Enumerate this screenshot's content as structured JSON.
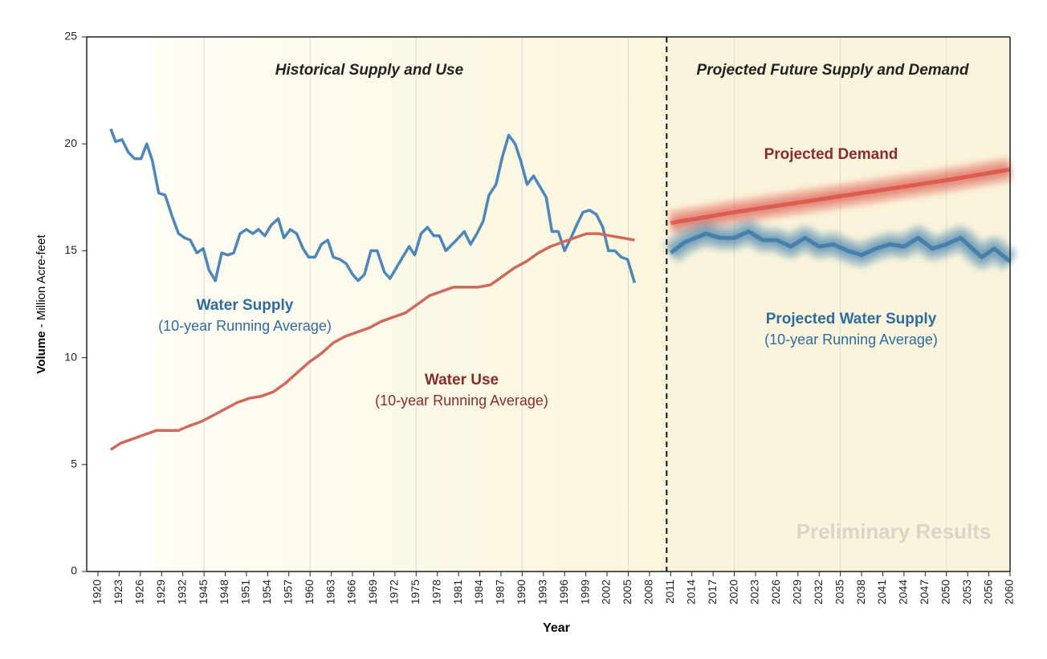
{
  "chart_data": {
    "type": "line",
    "xlabel": "Year",
    "ylabel": "Volume",
    "ylabel_units": "- Million Acre-feet",
    "ylim": [
      0,
      25
    ],
    "yticks": [
      0,
      5,
      10,
      15,
      20,
      25
    ],
    "xlim": [
      1920,
      2060
    ],
    "xticks": [
      1920,
      1923,
      1926,
      1929,
      1932,
      1945,
      1948,
      1951,
      1954,
      1957,
      1960,
      1963,
      1966,
      1969,
      1972,
      1975,
      1978,
      1981,
      1984,
      1987,
      1990,
      1993,
      1996,
      1999,
      2002,
      2005,
      2008,
      2011,
      2014,
      2017,
      2020,
      2023,
      2026,
      2029,
      2032,
      2035,
      2038,
      2041,
      2044,
      2047,
      2050,
      2053,
      2056,
      2060
    ],
    "regions": [
      {
        "title": "Historical Supply and Use"
      },
      {
        "title": "Projected Future Supply and Demand"
      }
    ],
    "watermark": "Preliminary Results",
    "series": [
      {
        "name": "Water Supply",
        "note": "(10-year Running Average)",
        "color": "#4b87ba",
        "blurred": false,
        "x": [
          1921.8,
          1922.5,
          1923.4,
          1924.3,
          1925.2,
          1926.1,
          1926.9,
          1927.7,
          1928.6,
          1929.5,
          1930.5,
          1931.4,
          1933.2,
          1936.6,
          1940.6,
          1944.5,
          1945.7,
          1946.6,
          1947.5,
          1948.4,
          1949.2,
          1950.1,
          1951.0,
          1951.9,
          1952.7,
          1953.6,
          1954.5,
          1955.5,
          1956.3,
          1957.2,
          1958.1,
          1959.0,
          1959.8,
          1960.7,
          1961.6,
          1962.5,
          1963.3,
          1964.2,
          1965.1,
          1966.0,
          1966.8,
          1967.7,
          1968.6,
          1969.5,
          1970.5,
          1971.3,
          1972.2,
          1973.1,
          1974.0,
          1974.8,
          1975.7,
          1976.6,
          1977.5,
          1978.3,
          1979.2,
          1980.1,
          1981.0,
          1981.8,
          1982.7,
          1983.6,
          1984.5,
          1985.3,
          1986.3,
          1987.2,
          1988.1,
          1989.0,
          1989.8,
          1990.7,
          1991.6,
          1992.5,
          1993.4,
          1994.2,
          1995.1,
          1996.0,
          1996.9,
          1997.7,
          1998.6,
          1999.5,
          2000.5,
          2001.4,
          2002.2,
          2003.1,
          2004.0,
          2004.9,
          2005.9
        ],
        "values": [
          20.7,
          20.1,
          20.2,
          19.6,
          19.3,
          19.3,
          20.0,
          19.2,
          17.7,
          17.6,
          16.6,
          15.8,
          15.6,
          15.5,
          14.9,
          15.1,
          14.1,
          13.6,
          14.9,
          14.8,
          14.9,
          15.8,
          16.0,
          15.8,
          16.0,
          15.7,
          16.2,
          16.5,
          15.6,
          16.0,
          15.8,
          15.1,
          14.7,
          14.7,
          15.3,
          15.5,
          14.7,
          14.6,
          14.4,
          13.9,
          13.6,
          13.9,
          15.0,
          15.0,
          14.0,
          13.7,
          14.2,
          14.7,
          15.2,
          14.8,
          15.8,
          16.1,
          15.7,
          15.7,
          15.0,
          15.3,
          15.6,
          15.9,
          15.3,
          15.8,
          16.4,
          17.6,
          18.1,
          19.4,
          20.4,
          20.0,
          19.2,
          18.1,
          18.5,
          18.0,
          17.5,
          15.9,
          15.9,
          15.0,
          15.6,
          16.2,
          16.8,
          16.9,
          16.7,
          16.1,
          15.0,
          15.0,
          14.7,
          14.6,
          13.5
        ]
      },
      {
        "name": "Water Use",
        "note": "(10-year Running Average)",
        "color": "#d0695c",
        "blurred": false,
        "x": [
          1921.8,
          1923.2,
          1924.9,
          1926.6,
          1928.3,
          1930.0,
          1931.4,
          1935.6,
          1943.0,
          1946.3,
          1948.0,
          1949.7,
          1951.4,
          1953.1,
          1954.8,
          1956.5,
          1958.2,
          1959.9,
          1961.6,
          1963.3,
          1965.0,
          1966.7,
          1968.4,
          1970.1,
          1971.8,
          1973.5,
          1975.2,
          1976.9,
          1978.6,
          1980.3,
          1982.0,
          1983.8,
          1985.5,
          1987.2,
          1988.9,
          1990.6,
          1992.3,
          1994.0,
          1995.7,
          1997.4,
          1999.1,
          2000.8,
          2002.5,
          2004.2,
          2005.9
        ],
        "values": [
          5.7,
          6.0,
          6.2,
          6.4,
          6.6,
          6.6,
          6.6,
          6.8,
          7.0,
          7.3,
          7.6,
          7.9,
          8.1,
          8.2,
          8.4,
          8.8,
          9.3,
          9.8,
          10.2,
          10.7,
          11.0,
          11.2,
          11.4,
          11.7,
          11.9,
          12.1,
          12.5,
          12.9,
          13.1,
          13.3,
          13.3,
          13.3,
          13.4,
          13.8,
          14.2,
          14.5,
          14.9,
          15.2,
          15.4,
          15.6,
          15.8,
          15.8,
          15.7,
          15.6,
          15.5
        ]
      },
      {
        "name": "Projected Demand",
        "color": "#d9483e",
        "blurred": true,
        "x": [
          2011,
          2020,
          2030,
          2040,
          2050,
          2060
        ],
        "values": [
          16.3,
          16.8,
          17.3,
          17.8,
          18.3,
          18.8
        ]
      },
      {
        "name": "Projected Water Supply",
        "note": "(10-year Running Average)",
        "color": "#2f72a6",
        "blurred": true,
        "x": [
          2011,
          2013,
          2016,
          2018,
          2020,
          2022,
          2024,
          2026,
          2028,
          2030,
          2032,
          2034,
          2036,
          2038,
          2040,
          2042,
          2044,
          2046,
          2048,
          2050,
          2052,
          2054,
          2055,
          2057,
          2060
        ],
        "values": [
          14.9,
          15.4,
          15.8,
          15.6,
          15.6,
          15.9,
          15.5,
          15.5,
          15.2,
          15.6,
          15.2,
          15.3,
          15.0,
          14.8,
          15.1,
          15.3,
          15.2,
          15.6,
          15.1,
          15.3,
          15.6,
          15.0,
          14.7,
          15.1,
          14.5
        ]
      }
    ]
  }
}
